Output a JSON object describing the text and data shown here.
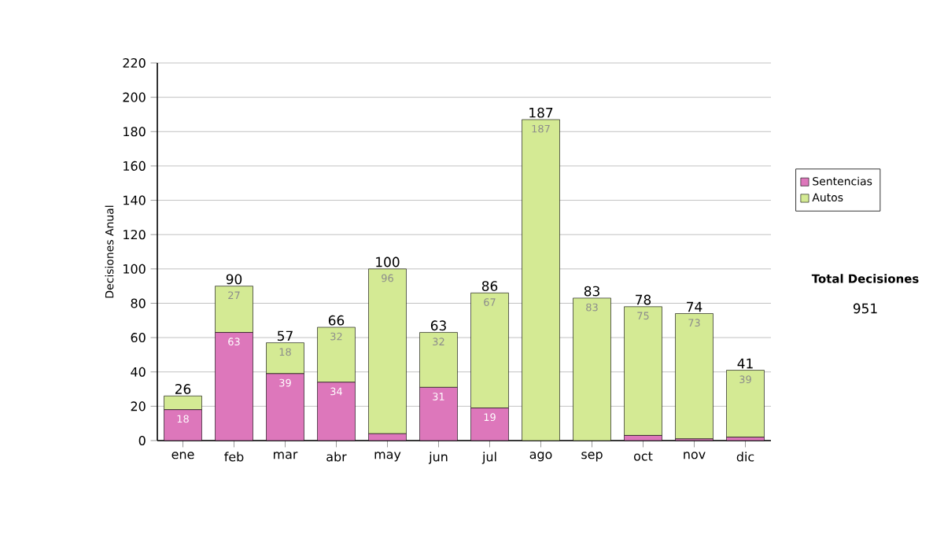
{
  "chart_data": {
    "type": "bar",
    "stacked": true,
    "ylabel": "Decisiones Anual",
    "categories": [
      "ene",
      "feb",
      "mar",
      "abr",
      "may",
      "jun",
      "jul",
      "ago",
      "sep",
      "oct",
      "nov",
      "dic"
    ],
    "series": [
      {
        "name": "Sentencias",
        "color": "#dd77bb",
        "values": [
          18,
          63,
          39,
          34,
          4,
          31,
          19,
          0,
          0,
          3,
          1,
          2
        ],
        "value_labels": [
          "18",
          "63",
          "39",
          "34",
          null,
          "31",
          "19",
          null,
          null,
          null,
          null,
          null
        ]
      },
      {
        "name": "Autos",
        "color": "#d4ea94",
        "values": [
          8,
          27,
          18,
          32,
          96,
          32,
          67,
          187,
          83,
          75,
          73,
          39
        ],
        "value_labels": [
          null,
          "27",
          "18",
          "32",
          "96",
          "32",
          "67",
          "187",
          "83",
          "75",
          "73",
          "39"
        ]
      }
    ],
    "totals": [
      "26",
      "90",
      "57",
      "66",
      "100",
      "63",
      "86",
      "187",
      "83",
      "78",
      "74",
      "41"
    ],
    "ylim": [
      0,
      220
    ],
    "yticks": [
      0,
      20,
      40,
      60,
      80,
      100,
      120,
      140,
      160,
      180,
      200,
      220
    ],
    "grid": "y",
    "legend": "right",
    "annotations": [
      "Total Decisiones",
      "951"
    ]
  }
}
